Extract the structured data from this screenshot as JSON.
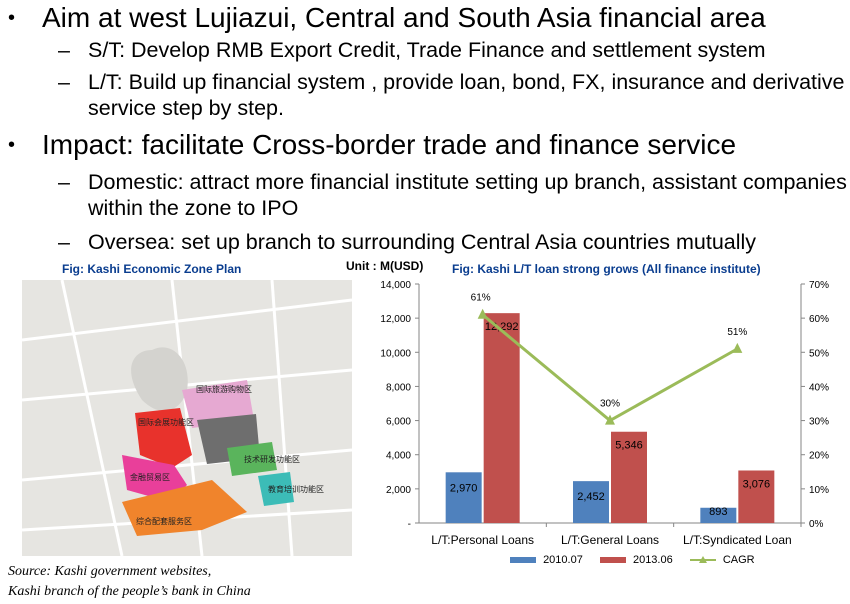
{
  "bullets": [
    {
      "text": "Aim at west Lujiazui, Central and South Asia financial area",
      "sub": [
        "S/T: Develop RMB Export Credit, Trade Finance and settlement system",
        "L/T: Build up financial system , provide loan, bond, FX, insurance and derivative service step by step."
      ]
    },
    {
      "text": "Impact: facilitate Cross-border trade and finance service",
      "sub": [
        "Domestic:  attract more financial institute setting up branch, assistant companies within the zone to IPO",
        "Oversea: set up branch to surrounding Central Asia countries mutually"
      ]
    }
  ],
  "bullet_symbol": "•",
  "dash_symbol": "–",
  "map": {
    "caption": "Fig: Kashi Economic Zone Plan",
    "zones": [
      {
        "label": "国际旅游购物区",
        "color": "#e6a9d2"
      },
      {
        "label": "国际会展功能区",
        "color": "#e8322c"
      },
      {
        "label": "金融贸易区",
        "color": "#e93f9a"
      },
      {
        "label": "技术研发功能区",
        "color": "#5ab45c"
      },
      {
        "label": "教育培训功能区",
        "color": "#3cbcb7"
      },
      {
        "label": "综合配套服务区",
        "color": "#f0842c"
      }
    ]
  },
  "source": {
    "line1": "Source: Kashi government websites,",
    "line2": "Kashi branch of the people’s bank in China"
  },
  "chart_data": {
    "type": "bar",
    "title": "Fig: Kashi L/T loan strong grows (All finance institute)",
    "unit_label": "Unit : M(USD)",
    "categories": [
      "L/T:Personal Loans",
      "L/T:General Loans",
      "L/T:Syndicated Loan"
    ],
    "series": [
      {
        "name": "2010.07",
        "values": [
          2970,
          2452,
          893
        ],
        "value_labels": [
          "2,970",
          "2,452",
          "893"
        ],
        "color": "#4f81bd"
      },
      {
        "name": "2013.06",
        "values": [
          12292,
          5346,
          3076
        ],
        "value_labels": [
          "12,292",
          "5,346",
          "3,076"
        ],
        "color": "#c0504d"
      }
    ],
    "line_series": {
      "name": "CAGR",
      "values": [
        61,
        30,
        51
      ],
      "value_labels": [
        "61%",
        "30%",
        "51%"
      ],
      "color": "#9bbb59",
      "axis": "right"
    },
    "ylim": [
      0,
      14000
    ],
    "yticks": [
      0,
      2000,
      4000,
      6000,
      8000,
      10000,
      12000,
      14000
    ],
    "ytick_labels": [
      "-",
      "2,000",
      "4,000",
      "6,000",
      "8,000",
      "10,000",
      "12,000",
      "14,000"
    ],
    "y2lim": [
      0,
      70
    ],
    "y2ticks": [
      0,
      10,
      20,
      30,
      40,
      50,
      60,
      70
    ],
    "y2tick_labels": [
      "0%",
      "10%",
      "20%",
      "30%",
      "40%",
      "50%",
      "60%",
      "70%"
    ],
    "legend": "bottom",
    "grid": false
  }
}
